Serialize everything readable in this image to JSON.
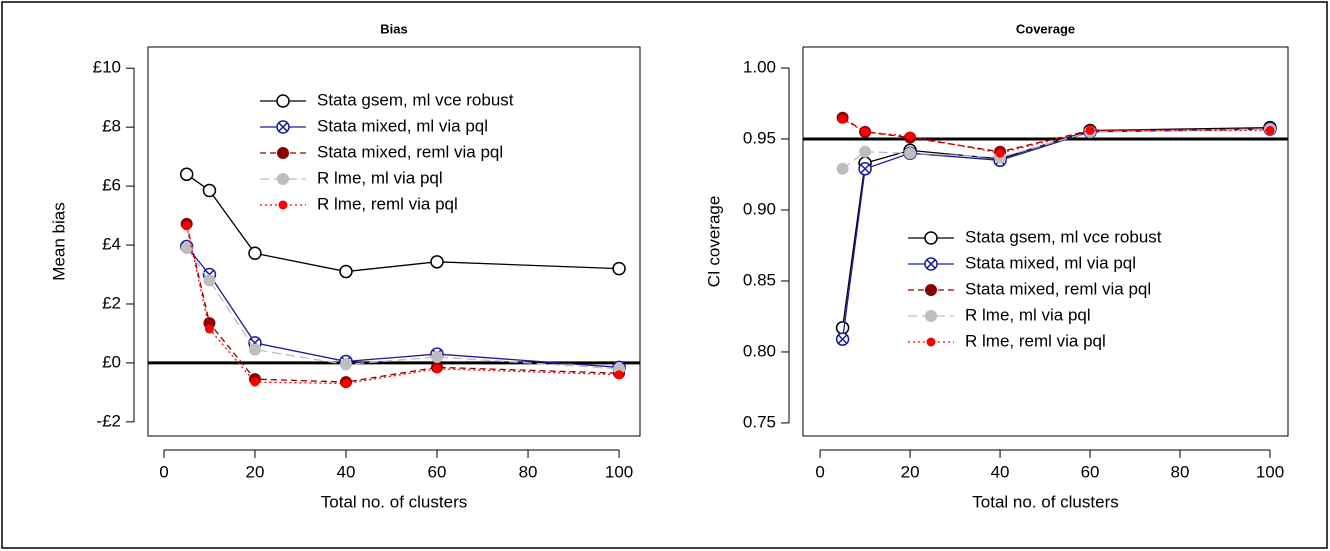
{
  "chart_data": [
    {
      "type": "line",
      "title": "Bias",
      "xlabel": "Total no. of clusters",
      "ylabel": "Mean bias",
      "x": [
        5,
        10,
        20,
        40,
        60,
        100
      ],
      "xlim": [
        -3.5,
        104.6
      ],
      "xticks": [
        0,
        20,
        40,
        60,
        80,
        100
      ],
      "ylim": [
        -2.48,
        10.72
      ],
      "yticks": [
        {
          "value": -2,
          "label": "-£2"
        },
        {
          "value": 0,
          "label": "£0"
        },
        {
          "value": 2,
          "label": "£2"
        },
        {
          "value": 4,
          "label": "£4"
        },
        {
          "value": 6,
          "label": "£6"
        },
        {
          "value": 8,
          "label": "£8"
        },
        {
          "value": 10,
          "label": "£10"
        }
      ],
      "hline": 0,
      "legend": "top-right",
      "series": [
        {
          "name": "Stata gsem, ml vce robust",
          "color": "#000000",
          "marker": "open-circle",
          "linestyle": "solid",
          "values": [
            6.4,
            5.85,
            3.72,
            3.1,
            3.43,
            3.2
          ]
        },
        {
          "name": "Stata mixed, ml via pql",
          "color": "#1c1c9c",
          "marker": "circle-x",
          "linestyle": "solid",
          "values": [
            3.95,
            3.0,
            0.68,
            0.05,
            0.3,
            -0.15
          ]
        },
        {
          "name": "Stata mixed, reml via pql",
          "color": "#8b0000",
          "marker": "filled-circle",
          "linestyle": "dashed",
          "values": [
            4.72,
            1.35,
            -0.55,
            -0.65,
            -0.15,
            -0.35
          ]
        },
        {
          "name": "R lme, ml via pql",
          "color": "#bebebe",
          "marker": "filled-circle",
          "linestyle": "longdash",
          "values": [
            3.9,
            2.8,
            0.45,
            -0.05,
            0.2,
            -0.2
          ]
        },
        {
          "name": "R lme, reml via pql",
          "color": "#ff0000",
          "marker": "small-filled-circle",
          "linestyle": "dotted",
          "values": [
            4.65,
            1.15,
            -0.65,
            -0.7,
            -0.2,
            -0.4
          ]
        }
      ]
    },
    {
      "type": "line",
      "title": "Coverage",
      "xlabel": "Total no. of clusters",
      "ylabel": "CI coverage",
      "x": [
        5,
        10,
        20,
        40,
        60,
        100
      ],
      "xlim": [
        -3.8,
        104
      ],
      "xticks": [
        0,
        20,
        40,
        60,
        80,
        100
      ],
      "ylim": [
        0.7408,
        1.0148
      ],
      "yticks": [
        0.75,
        {
          "value": 0.8,
          "label": "0.80"
        },
        0.85,
        {
          "value": 0.9,
          "label": "0.90"
        },
        0.95,
        {
          "value": 1,
          "label": "1.00"
        }
      ],
      "hline": 0.95,
      "legend": "right",
      "series": [
        {
          "name": "Stata gsem, ml vce robust",
          "color": "#000000",
          "marker": "open-circle",
          "linestyle": "solid",
          "values": [
            0.817,
            0.933,
            0.942,
            0.936,
            0.956,
            0.958
          ]
        },
        {
          "name": "Stata mixed, ml via pql",
          "color": "#1c1c9c",
          "marker": "circle-x",
          "linestyle": "solid",
          "values": [
            0.809,
            0.929,
            0.94,
            0.935,
            0.955,
            0.957
          ]
        },
        {
          "name": "Stata mixed, reml via pql",
          "color": "#8b0000",
          "marker": "filled-circle",
          "linestyle": "dashed",
          "values": [
            0.965,
            0.955,
            0.951,
            0.941,
            0.956,
            0.957
          ]
        },
        {
          "name": "R lme, ml via pql",
          "color": "#bebebe",
          "marker": "filled-circle",
          "linestyle": "longdash",
          "values": [
            0.929,
            0.941,
            0.94,
            0.937,
            0.955,
            0.957
          ]
        },
        {
          "name": "R lme, reml via pql",
          "color": "#ff0000",
          "marker": "small-filled-circle",
          "linestyle": "dotted",
          "values": [
            0.964,
            0.955,
            0.952,
            0.94,
            0.956,
            0.956
          ]
        }
      ]
    }
  ]
}
